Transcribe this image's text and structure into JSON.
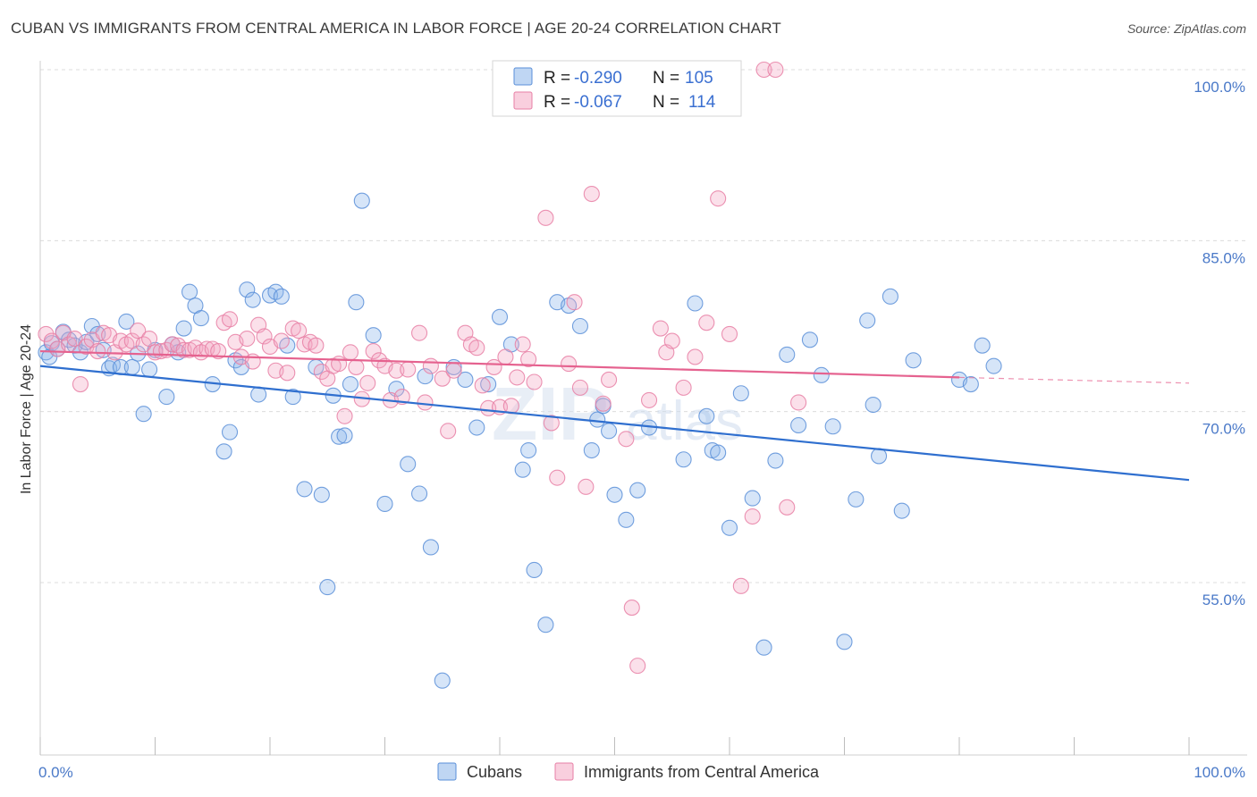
{
  "title": "CUBAN VS IMMIGRANTS FROM CENTRAL AMERICA IN LABOR FORCE | AGE 20-24 CORRELATION CHART",
  "source": "Source: ZipAtlas.com",
  "watermark": {
    "zip": "ZIP",
    "atlas": "atlas"
  },
  "legend": {
    "rows": [
      {
        "r_label": "R =",
        "r_value": "-0.290",
        "n_label": "N =",
        "n_value": "105",
        "color": "#8ab4ea"
      },
      {
        "r_label": "R =",
        "r_value": "-0.067",
        "n_label": "N =",
        "n_value": "114",
        "color": "#f4a7c2"
      }
    ]
  },
  "chart_data": {
    "type": "scatter",
    "xlabel": "",
    "ylabel": "In Labor Force | Age 20-24",
    "xlim": [
      0,
      100
    ],
    "ylim": [
      42,
      100
    ],
    "y_ticks": [
      {
        "value": 55,
        "label": "55.0%"
      },
      {
        "value": 70,
        "label": "70.0%"
      },
      {
        "value": 85,
        "label": "85.0%"
      },
      {
        "value": 100,
        "label": "100.0%"
      }
    ],
    "x_tick_labels": [
      {
        "value": 0,
        "label": "0.0%"
      },
      {
        "value": 100,
        "label": "100.0%"
      }
    ],
    "grid": true,
    "legend_position": "top-center",
    "series": [
      {
        "name": "Cubans",
        "color": "#8ab4ea",
        "stroke": "#5a8fd8",
        "trend": {
          "x0": 0,
          "y0": 74.0,
          "x1": 100,
          "y1": 64.0,
          "color": "#2f6fcf"
        },
        "points": [
          [
            0.5,
            75.2
          ],
          [
            0.8,
            74.8
          ],
          [
            1,
            76
          ],
          [
            1.5,
            75.5
          ],
          [
            2,
            77
          ],
          [
            2.5,
            76.3
          ],
          [
            3,
            75.8
          ],
          [
            3.5,
            75.2
          ],
          [
            4,
            76.1
          ],
          [
            4.5,
            77.5
          ],
          [
            5,
            76.8
          ],
          [
            5.5,
            75.4
          ],
          [
            6,
            73.8
          ],
          [
            6.3,
            74.1
          ],
          [
            7,
            73.9
          ],
          [
            7.5,
            77.9
          ],
          [
            8,
            73.9
          ],
          [
            8.5,
            75.1
          ],
          [
            9,
            69.8
          ],
          [
            9.5,
            73.7
          ],
          [
            10,
            75.4
          ],
          [
            11,
            71.3
          ],
          [
            11.5,
            75.9
          ],
          [
            12,
            75.2
          ],
          [
            12.5,
            77.3
          ],
          [
            13,
            80.5
          ],
          [
            13.5,
            79.3
          ],
          [
            14,
            78.2
          ],
          [
            15,
            72.4
          ],
          [
            16,
            66.5
          ],
          [
            16.5,
            68.2
          ],
          [
            17,
            74.5
          ],
          [
            17.5,
            73.9
          ],
          [
            18,
            80.7
          ],
          [
            18.5,
            79.8
          ],
          [
            19,
            71.5
          ],
          [
            20,
            80.2
          ],
          [
            20.5,
            80.5
          ],
          [
            21,
            80.1
          ],
          [
            21.5,
            75.8
          ],
          [
            22,
            71.3
          ],
          [
            23,
            63.2
          ],
          [
            24,
            73.9
          ],
          [
            24.5,
            62.7
          ],
          [
            25,
            54.6
          ],
          [
            25.5,
            71.4
          ],
          [
            26,
            67.8
          ],
          [
            26.5,
            67.9
          ],
          [
            27,
            72.4
          ],
          [
            27.5,
            79.6
          ],
          [
            28,
            88.5
          ],
          [
            29,
            76.7
          ],
          [
            30,
            61.9
          ],
          [
            31,
            72.0
          ],
          [
            32,
            65.4
          ],
          [
            33,
            62.8
          ],
          [
            33.5,
            73.1
          ],
          [
            34,
            58.1
          ],
          [
            35,
            46.4
          ],
          [
            36,
            73.9
          ],
          [
            37,
            72.8
          ],
          [
            38,
            68.6
          ],
          [
            39,
            72.4
          ],
          [
            40,
            78.3
          ],
          [
            41,
            75.9
          ],
          [
            42,
            64.9
          ],
          [
            42.5,
            66.6
          ],
          [
            43,
            56.1
          ],
          [
            44,
            51.3
          ],
          [
            45,
            79.6
          ],
          [
            46,
            79.3
          ],
          [
            47,
            77.5
          ],
          [
            48,
            66.6
          ],
          [
            48.5,
            69.3
          ],
          [
            49,
            70.5
          ],
          [
            49.5,
            68.3
          ],
          [
            50,
            62.7
          ],
          [
            51,
            60.5
          ],
          [
            52,
            63.1
          ],
          [
            53,
            68.6
          ],
          [
            56,
            65.8
          ],
          [
            57,
            79.5
          ],
          [
            58,
            69.6
          ],
          [
            58.5,
            66.6
          ],
          [
            59,
            66.4
          ],
          [
            60,
            59.8
          ],
          [
            61,
            71.6
          ],
          [
            62,
            62.4
          ],
          [
            63,
            49.3
          ],
          [
            64,
            65.7
          ],
          [
            65,
            75.0
          ],
          [
            66,
            68.8
          ],
          [
            67,
            76.3
          ],
          [
            68,
            73.2
          ],
          [
            69,
            68.7
          ],
          [
            70,
            49.8
          ],
          [
            71,
            62.3
          ],
          [
            72,
            78.0
          ],
          [
            72.5,
            70.6
          ],
          [
            73,
            66.1
          ],
          [
            74,
            80.1
          ],
          [
            75,
            61.3
          ],
          [
            76,
            74.5
          ],
          [
            80,
            72.8
          ],
          [
            81,
            72.4
          ],
          [
            82,
            75.8
          ],
          [
            83,
            74.0
          ]
        ]
      },
      {
        "name": "Immigrants from Central America",
        "color": "#f4a7c2",
        "stroke": "#e77fa5",
        "trend": {
          "x0": 0,
          "y0": 75.3,
          "x1": 80,
          "y1": 73.0,
          "x2": 100,
          "y2": 72.5,
          "color": "#e5628f"
        },
        "points": [
          [
            0.5,
            76.8
          ],
          [
            1,
            76.2
          ],
          [
            1.5,
            75.5
          ],
          [
            2,
            76.9
          ],
          [
            2.5,
            75.9
          ],
          [
            3,
            76.4
          ],
          [
            3.5,
            72.4
          ],
          [
            4,
            75.7
          ],
          [
            4.5,
            76.3
          ],
          [
            5,
            75.3
          ],
          [
            5.5,
            76.9
          ],
          [
            6,
            76.7
          ],
          [
            6.5,
            75.2
          ],
          [
            7,
            76.2
          ],
          [
            7.5,
            75.9
          ],
          [
            8,
            76.2
          ],
          [
            8.5,
            77.1
          ],
          [
            9,
            75.9
          ],
          [
            9.5,
            76.4
          ],
          [
            10,
            75.2
          ],
          [
            10.5,
            75.3
          ],
          [
            11,
            75.4
          ],
          [
            11.5,
            75.9
          ],
          [
            12,
            75.8
          ],
          [
            12.5,
            75.4
          ],
          [
            13,
            75.4
          ],
          [
            13.5,
            75.6
          ],
          [
            14,
            75.2
          ],
          [
            14.5,
            75.5
          ],
          [
            15,
            75.5
          ],
          [
            15.5,
            75.3
          ],
          [
            16,
            77.8
          ],
          [
            16.5,
            78.1
          ],
          [
            17,
            76.1
          ],
          [
            17.5,
            74.8
          ],
          [
            18,
            76.4
          ],
          [
            18.5,
            74.4
          ],
          [
            19,
            77.6
          ],
          [
            19.5,
            76.6
          ],
          [
            20,
            75.7
          ],
          [
            20.5,
            73.6
          ],
          [
            21,
            76.2
          ],
          [
            21.5,
            73.4
          ],
          [
            22,
            77.3
          ],
          [
            22.5,
            77.1
          ],
          [
            23,
            75.9
          ],
          [
            23.5,
            76.1
          ],
          [
            24,
            75.8
          ],
          [
            24.5,
            73.5
          ],
          [
            25,
            72.9
          ],
          [
            25.5,
            74.0
          ],
          [
            26,
            74.2
          ],
          [
            26.5,
            69.6
          ],
          [
            27,
            75.2
          ],
          [
            27.5,
            73.9
          ],
          [
            28,
            71.1
          ],
          [
            28.5,
            72.5
          ],
          [
            29,
            75.3
          ],
          [
            29.5,
            74.5
          ],
          [
            30,
            74.0
          ],
          [
            30.5,
            71.0
          ],
          [
            31,
            73.6
          ],
          [
            31.5,
            71.3
          ],
          [
            32,
            73.7
          ],
          [
            33,
            76.9
          ],
          [
            33.5,
            70.8
          ],
          [
            34,
            74.0
          ],
          [
            35,
            72.9
          ],
          [
            35.5,
            68.3
          ],
          [
            36,
            73.6
          ],
          [
            37,
            76.9
          ],
          [
            37.5,
            75.9
          ],
          [
            38,
            75.6
          ],
          [
            38.5,
            72.3
          ],
          [
            39,
            70.3
          ],
          [
            39.5,
            73.9
          ],
          [
            40,
            70.4
          ],
          [
            40.5,
            74.8
          ],
          [
            41,
            70.5
          ],
          [
            41.5,
            73.0
          ],
          [
            42,
            75.9
          ],
          [
            42.5,
            74.6
          ],
          [
            43,
            72.6
          ],
          [
            44,
            87.0
          ],
          [
            44.5,
            69.0
          ],
          [
            45,
            64.2
          ],
          [
            46,
            74.2
          ],
          [
            46.5,
            79.6
          ],
          [
            47,
            72.1
          ],
          [
            47.5,
            63.4
          ],
          [
            48,
            89.1
          ],
          [
            49,
            70.7
          ],
          [
            49.5,
            72.8
          ],
          [
            50,
            100
          ],
          [
            51,
            67.6
          ],
          [
            51.5,
            52.8
          ],
          [
            52,
            47.7
          ],
          [
            53,
            71.0
          ],
          [
            54,
            77.3
          ],
          [
            54.5,
            75.2
          ],
          [
            55,
            76.2
          ],
          [
            56,
            72.1
          ],
          [
            57,
            74.8
          ],
          [
            58,
            77.8
          ],
          [
            59,
            88.7
          ],
          [
            60,
            76.8
          ],
          [
            61,
            54.7
          ],
          [
            62,
            60.8
          ],
          [
            63,
            100
          ],
          [
            64,
            100
          ],
          [
            65,
            61.6
          ],
          [
            66,
            70.8
          ]
        ]
      }
    ]
  }
}
